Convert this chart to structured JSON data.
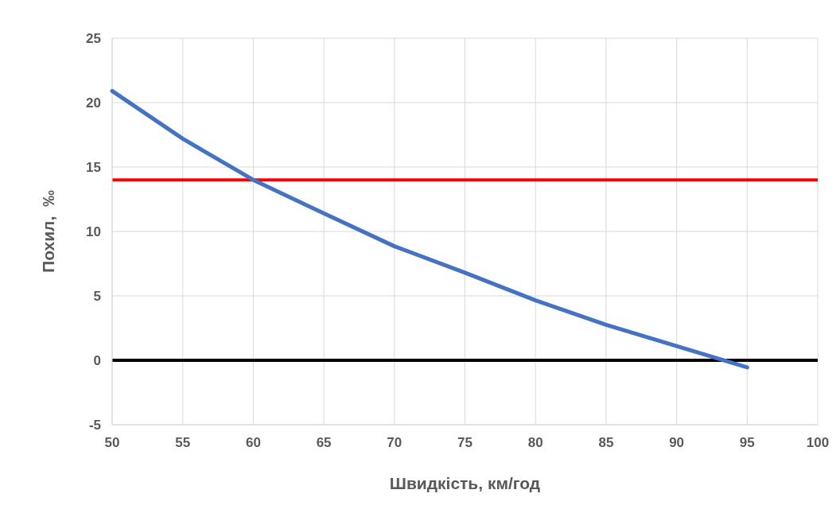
{
  "chart_data": {
    "type": "line",
    "xlabel": "Швидкість, км/год",
    "ylabel": "Похил,  ‰",
    "x": [
      50,
      55,
      60,
      65,
      70,
      75,
      80,
      85,
      90,
      95
    ],
    "series": [
      {
        "color": "#4472c4",
        "values": [
          20.9,
          17.2,
          14.0,
          11.4,
          8.85,
          6.8,
          4.65,
          2.75,
          1.1,
          -0.55
        ]
      }
    ],
    "xlim": [
      50,
      100
    ],
    "xticks": [
      50,
      55,
      60,
      65,
      70,
      75,
      80,
      85,
      90,
      95,
      100
    ],
    "ylim": [
      -5,
      25
    ],
    "yticks": [
      -5,
      0,
      5,
      10,
      15,
      20,
      25
    ],
    "ref_lines": [
      {
        "axis": "y",
        "value": 14,
        "color": "#ff0000"
      },
      {
        "axis": "y",
        "value": 0,
        "color": "#000000"
      }
    ],
    "grid": true,
    "marker": "none",
    "line_style": "solid"
  }
}
